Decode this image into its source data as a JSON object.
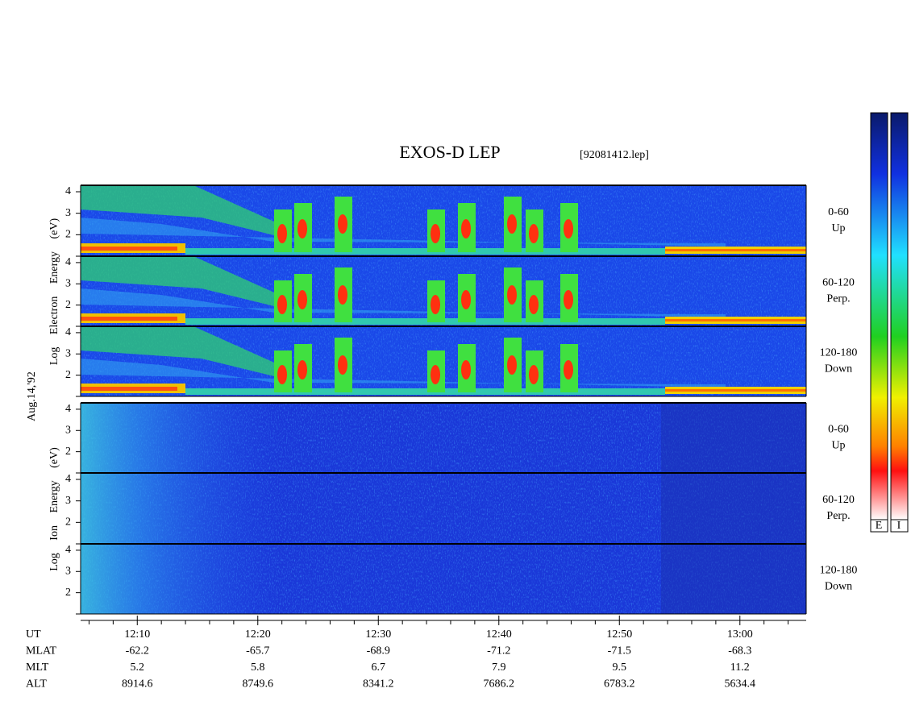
{
  "title": "EXOS-D LEP",
  "file": "[92081412.lep]",
  "date": "Aug.14,'92",
  "electron_label": "Log Electron Energy (eV)",
  "ion_label": "Log Ion Energy (eV)",
  "energy_axis": {
    "ylim": [
      1,
      4.3
    ],
    "yticks": [
      2,
      3,
      4
    ]
  },
  "panels": [
    {
      "species": "electron",
      "angle": "0-60",
      "direction": "Up"
    },
    {
      "species": "electron",
      "angle": "60-120",
      "direction": "Perp."
    },
    {
      "species": "electron",
      "angle": "120-180",
      "direction": "Down"
    },
    {
      "species": "ion",
      "angle": "0-60",
      "direction": "Up"
    },
    {
      "species": "ion",
      "angle": "60-120",
      "direction": "Perp."
    },
    {
      "species": "ion",
      "angle": "120-180",
      "direction": "Down"
    }
  ],
  "time_axis": {
    "xlim": [
      5.3,
      65.5
    ],
    "ticks": [
      {
        "value": 10,
        "label": "12:10"
      },
      {
        "value": 20,
        "label": "12:20"
      },
      {
        "value": 30,
        "label": "12:30"
      },
      {
        "value": 40,
        "label": "12:40"
      },
      {
        "value": 50,
        "label": "12:50"
      },
      {
        "value": 60,
        "label": "13:00"
      }
    ],
    "minor_ticks": [
      6,
      8,
      12,
      14,
      16,
      18,
      22,
      24,
      26,
      28,
      32,
      34,
      36,
      38,
      42,
      44,
      46,
      48,
      52,
      54,
      56,
      58,
      62,
      64
    ]
  },
  "ephemeris": {
    "rows": [
      {
        "name": "UT"
      },
      {
        "name": "MLAT",
        "values": [
          "-62.2",
          "-65.7",
          "-68.9",
          "-71.2",
          "-71.5",
          "-68.3"
        ]
      },
      {
        "name": "MLT",
        "values": [
          "5.2",
          "5.8",
          "6.7",
          "7.9",
          "9.5",
          "11.2"
        ]
      },
      {
        "name": "ALT",
        "values": [
          "8914.6",
          "8749.6",
          "8341.2",
          "7686.2",
          "6783.2",
          "5634.4"
        ]
      }
    ]
  },
  "colorbar": {
    "labels": [
      "E",
      "I"
    ]
  }
}
